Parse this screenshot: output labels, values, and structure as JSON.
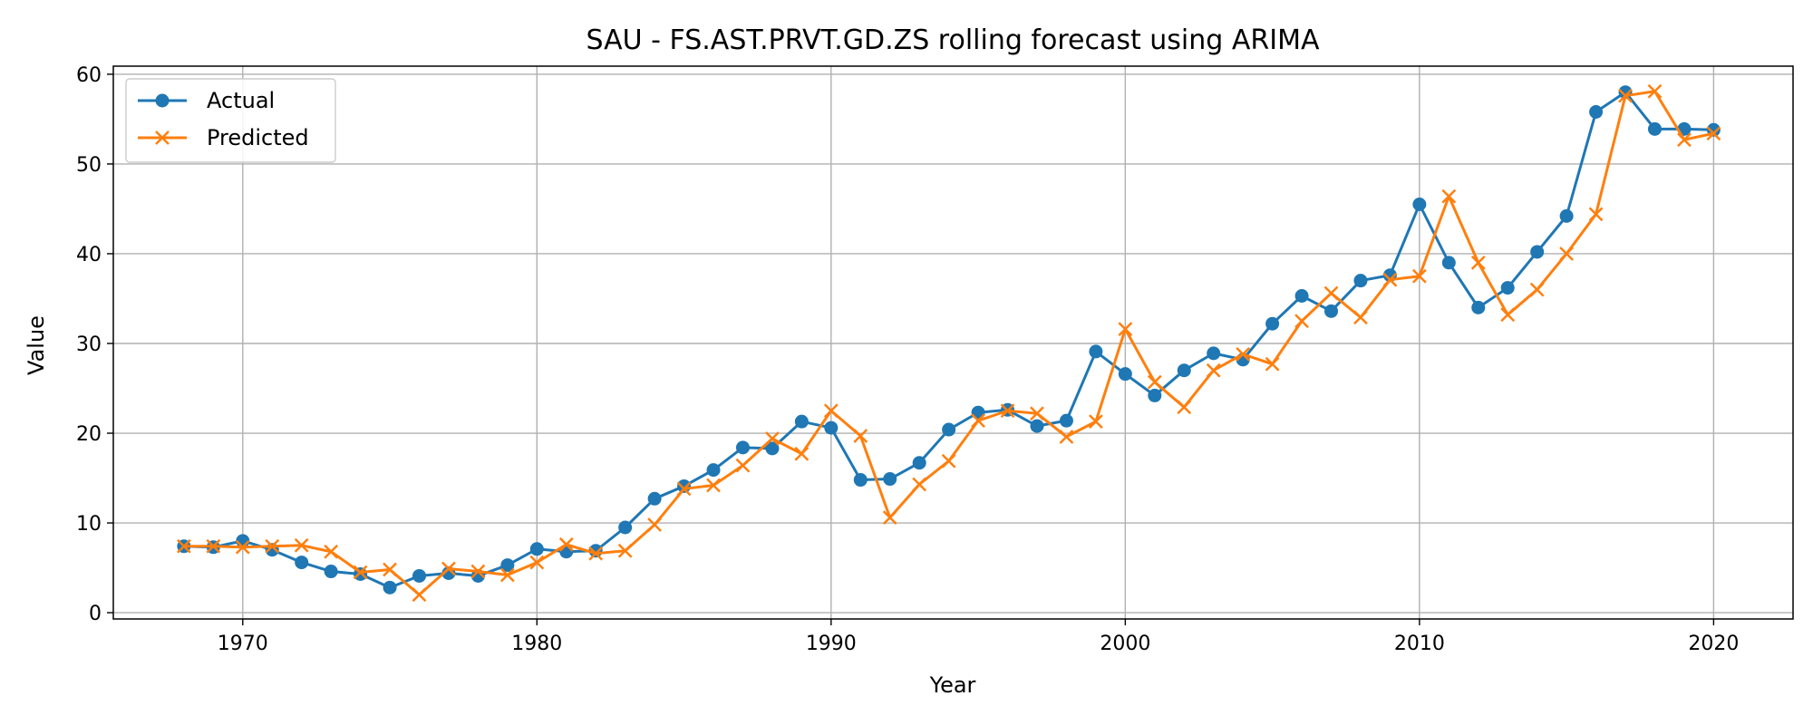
{
  "chart_data": {
    "type": "line",
    "title": "SAU - FS.AST.PRVT.GD.ZS rolling forecast using ARIMA",
    "xlabel": "Year",
    "ylabel": "Value",
    "xlim": [
      1965.6,
      2022.7
    ],
    "ylim": [
      -0.7,
      60.9
    ],
    "xticks": [
      1970,
      1980,
      1990,
      2000,
      2010,
      2020
    ],
    "yticks": [
      0,
      10,
      20,
      30,
      40,
      50,
      60
    ],
    "grid": true,
    "legend_position": "top-left",
    "x": [
      1968,
      1969,
      1970,
      1971,
      1972,
      1973,
      1974,
      1975,
      1976,
      1977,
      1978,
      1979,
      1980,
      1981,
      1982,
      1983,
      1984,
      1985,
      1986,
      1987,
      1988,
      1989,
      1990,
      1991,
      1992,
      1993,
      1994,
      1995,
      1996,
      1997,
      1998,
      1999,
      2000,
      2001,
      2002,
      2003,
      2004,
      2005,
      2006,
      2007,
      2008,
      2009,
      2010,
      2011,
      2012,
      2013,
      2014,
      2015,
      2016,
      2017,
      2018,
      2019,
      2020
    ],
    "series": [
      {
        "name": "Actual",
        "color": "#1f77b4",
        "marker": "circle",
        "values": [
          7.4,
          7.3,
          8.0,
          7.0,
          5.6,
          4.6,
          4.3,
          2.8,
          4.1,
          4.4,
          4.1,
          5.3,
          7.1,
          6.8,
          6.9,
          9.5,
          12.7,
          14.1,
          15.9,
          18.4,
          18.3,
          21.3,
          20.6,
          14.8,
          14.9,
          16.7,
          20.4,
          22.3,
          22.6,
          20.8,
          21.4,
          29.1,
          26.6,
          24.2,
          27.0,
          28.9,
          28.2,
          32.2,
          35.3,
          33.6,
          37.0,
          37.6,
          45.5,
          39.0,
          34.0,
          36.2,
          40.2,
          44.2,
          55.8,
          58.0,
          53.9,
          53.9,
          53.8
        ]
      },
      {
        "name": "Predicted",
        "color": "#ff7f0e",
        "marker": "x",
        "values": [
          7.4,
          7.4,
          7.3,
          7.4,
          7.5,
          6.8,
          4.5,
          4.8,
          2.0,
          4.9,
          4.6,
          4.2,
          5.6,
          7.6,
          6.6,
          6.9,
          9.8,
          13.8,
          14.2,
          16.4,
          19.4,
          17.7,
          22.5,
          19.7,
          10.6,
          14.3,
          16.9,
          21.4,
          22.5,
          22.2,
          19.6,
          21.3,
          31.6,
          25.7,
          22.9,
          27.0,
          28.8,
          27.7,
          32.5,
          35.6,
          32.9,
          37.1,
          37.5,
          46.4,
          39.0,
          33.2,
          36.0,
          40.0,
          44.4,
          57.6,
          58.1,
          52.7,
          53.4
        ]
      }
    ]
  }
}
